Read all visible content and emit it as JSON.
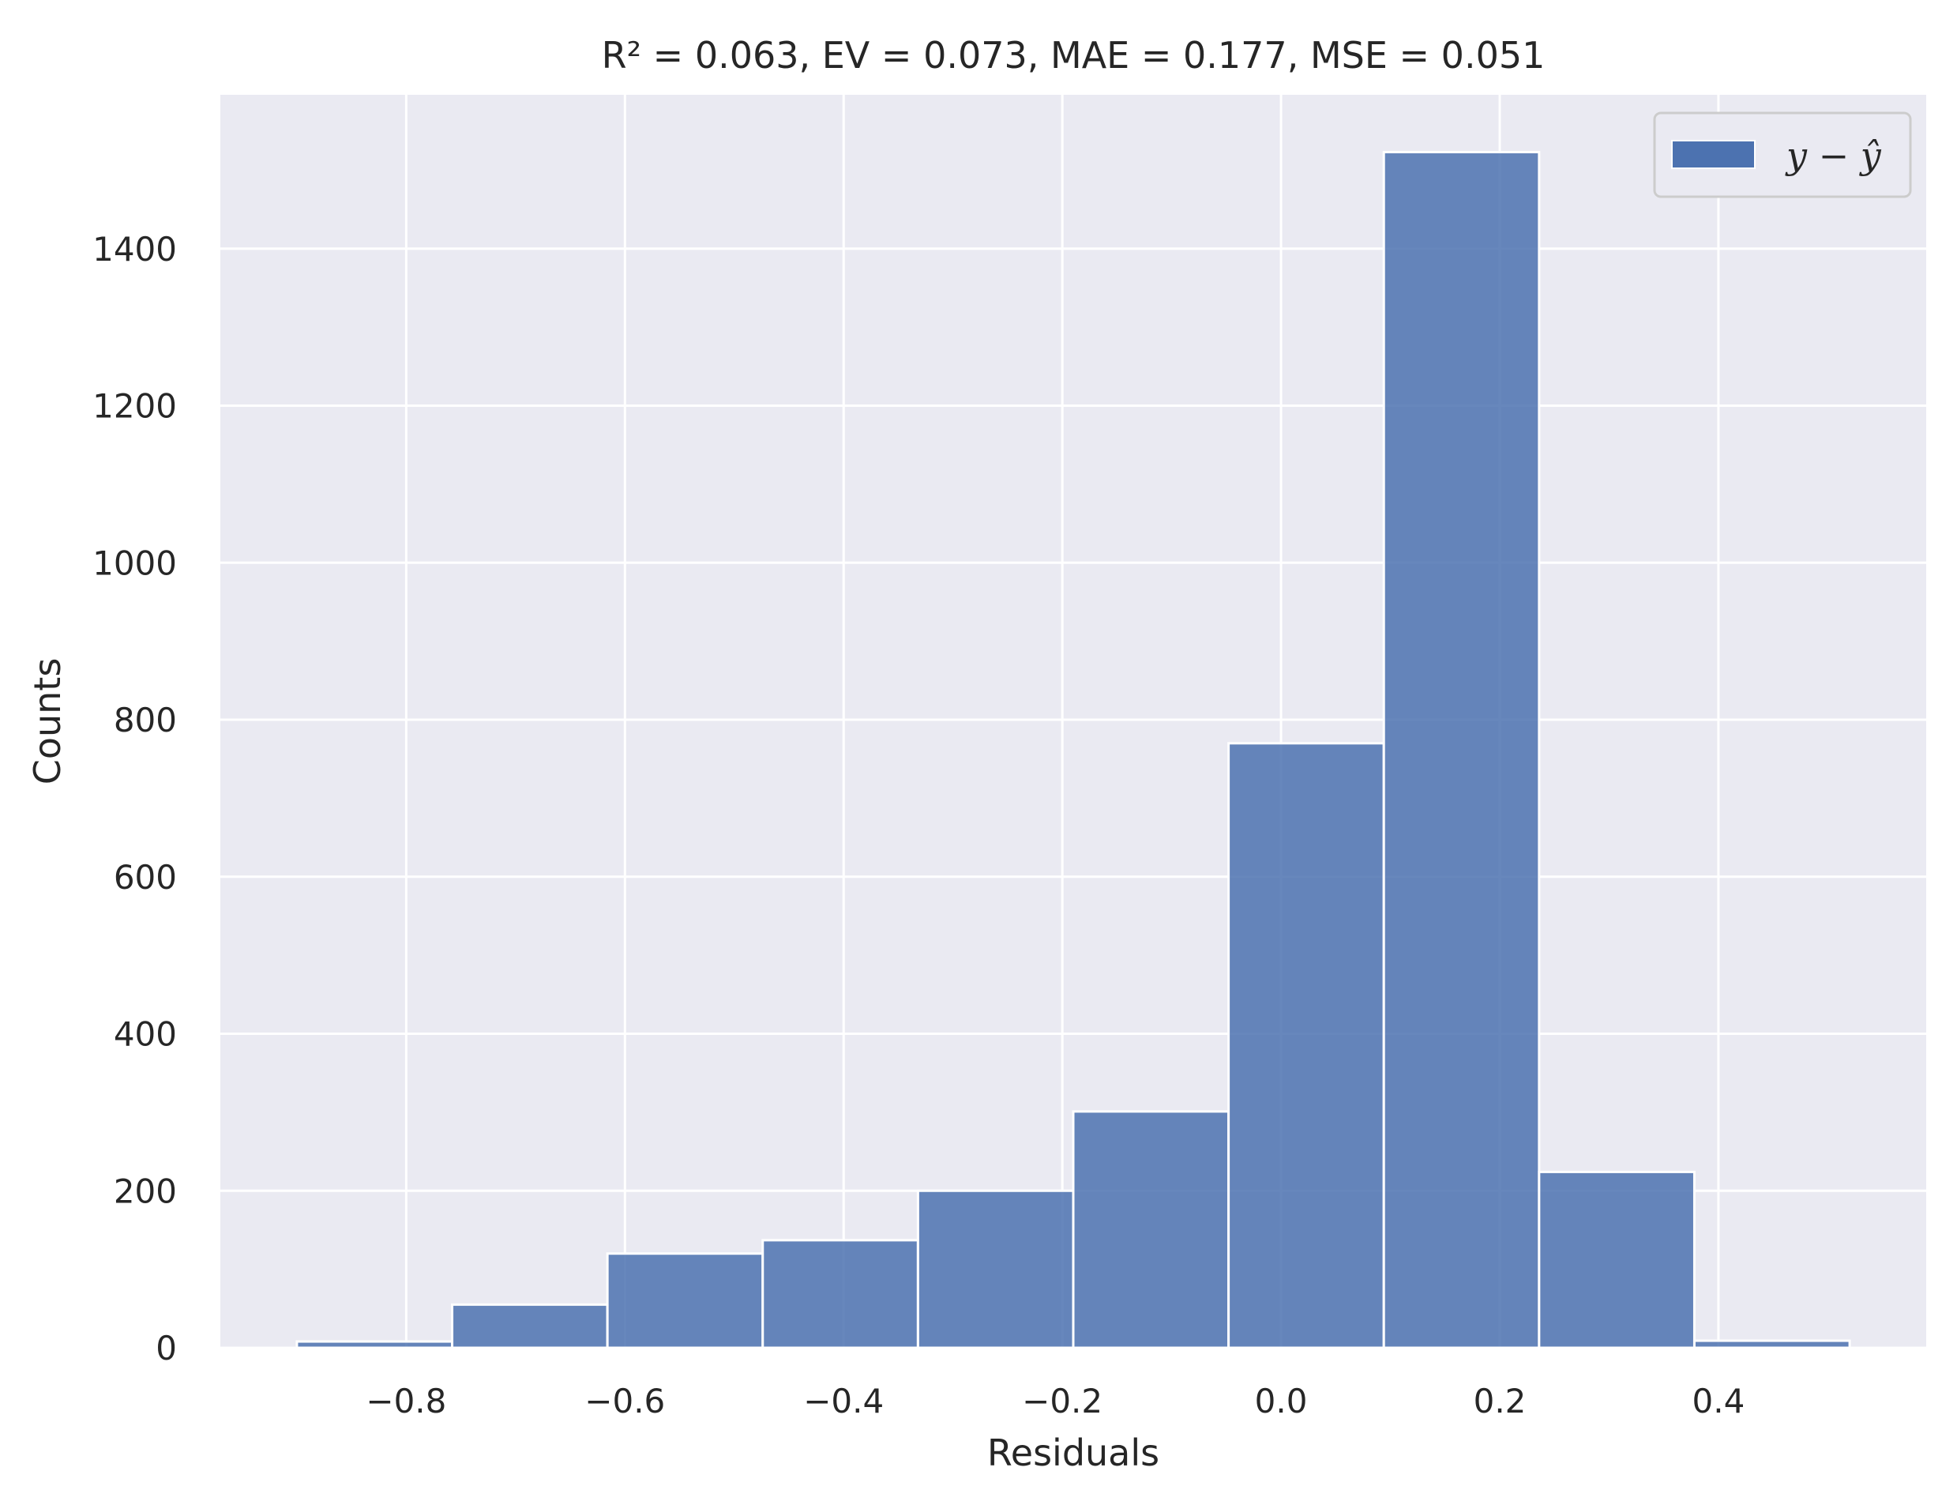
{
  "chart_data": {
    "type": "bar",
    "title": "R² = 0.063,   EV = 0.073,   MAE = 0.177,   MSE = 0.051",
    "xlabel": "Residuals",
    "ylabel": "Counts",
    "xlim": [
      -0.97,
      0.59
    ],
    "ylim": [
      0,
      1596
    ],
    "xticks": [
      -0.8,
      -0.6,
      -0.4,
      -0.2,
      0.0,
      0.2,
      0.4
    ],
    "xtick_labels": [
      "−0.8",
      "−0.6",
      "−0.4",
      "−0.2",
      "0.0",
      "0.2",
      "0.4"
    ],
    "yticks": [
      0,
      200,
      400,
      600,
      800,
      1000,
      1200,
      1400
    ],
    "ytick_labels": [
      "0",
      "200",
      "400",
      "600",
      "800",
      "1000",
      "1200",
      "1400"
    ],
    "grid": true,
    "legend_position": "top-right",
    "color": "#4c72b0",
    "series": [
      {
        "name": "y − ŷ",
        "bin_edges": [
          -0.9,
          -0.758,
          -0.616,
          -0.474,
          -0.332,
          -0.19,
          -0.048,
          0.094,
          0.236,
          0.378,
          0.52
        ],
        "values": [
          8,
          55,
          120,
          137,
          200,
          301,
          770,
          1523,
          224,
          9
        ]
      }
    ]
  }
}
